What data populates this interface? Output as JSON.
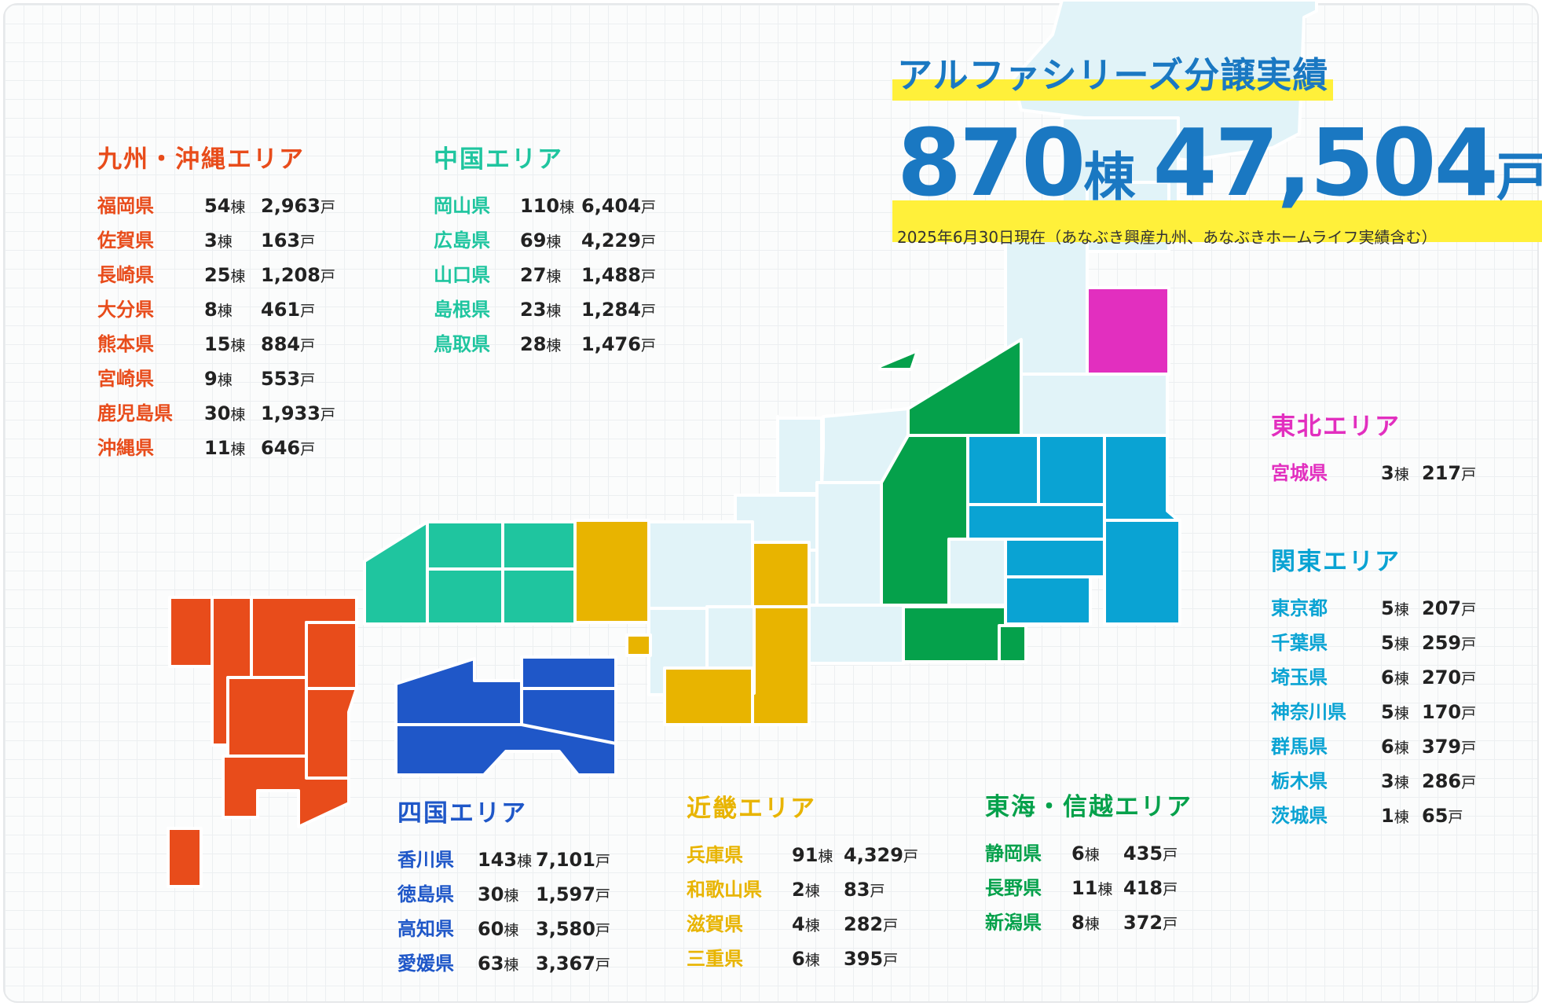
{
  "headline": {
    "title": "アルファシリーズ分譲実績",
    "total_buildings": "870",
    "buildings_unit": "棟",
    "total_units": "47,504",
    "units_unit": "戸",
    "note": "2025年6月30日現在（あなぶき興産九州、あなぶきホームライフ実績含む）"
  },
  "colors": {
    "kyushu": "#e84c1b",
    "chugoku": "#1fc59f",
    "shikoku": "#1f57c8",
    "kinki": "#e8b400",
    "tokai_shinetsu": "#05a14b",
    "tohoku": "#e22fbf",
    "kanto": "#0aa3d3",
    "headline": "#1a78c2",
    "highlight": "#fff03a",
    "map_base": "#e1f3f8"
  },
  "areas": {
    "kyushu": {
      "title": "九州・沖縄エリア",
      "prefectures": [
        {
          "name": "福岡県",
          "buildings": "54",
          "units": "2,963"
        },
        {
          "name": "佐賀県",
          "buildings": "3",
          "units": "163"
        },
        {
          "name": "長崎県",
          "buildings": "25",
          "units": "1,208"
        },
        {
          "name": "大分県",
          "buildings": "8",
          "units": "461"
        },
        {
          "name": "熊本県",
          "buildings": "15",
          "units": "884"
        },
        {
          "name": "宮崎県",
          "buildings": "9",
          "units": "553"
        },
        {
          "name": "鹿児島県",
          "buildings": "30",
          "units": "1,933"
        },
        {
          "name": "沖縄県",
          "buildings": "11",
          "units": "646"
        }
      ]
    },
    "chugoku": {
      "title": "中国エリア",
      "prefectures": [
        {
          "name": "岡山県",
          "buildings": "110",
          "units": "6,404"
        },
        {
          "name": "広島県",
          "buildings": "69",
          "units": "4,229"
        },
        {
          "name": "山口県",
          "buildings": "27",
          "units": "1,488"
        },
        {
          "name": "島根県",
          "buildings": "23",
          "units": "1,284"
        },
        {
          "name": "鳥取県",
          "buildings": "28",
          "units": "1,476"
        }
      ]
    },
    "shikoku": {
      "title": "四国エリア",
      "prefectures": [
        {
          "name": "香川県",
          "buildings": "143",
          "units": "7,101"
        },
        {
          "name": "徳島県",
          "buildings": "30",
          "units": "1,597"
        },
        {
          "name": "高知県",
          "buildings": "60",
          "units": "3,580"
        },
        {
          "name": "愛媛県",
          "buildings": "63",
          "units": "3,367"
        }
      ]
    },
    "kinki": {
      "title": "近畿エリア",
      "prefectures": [
        {
          "name": "兵庫県",
          "buildings": "91",
          "units": "4,329"
        },
        {
          "name": "和歌山県",
          "buildings": "2",
          "units": "83"
        },
        {
          "name": "滋賀県",
          "buildings": "4",
          "units": "282"
        },
        {
          "name": "三重県",
          "buildings": "6",
          "units": "395"
        }
      ]
    },
    "tokai": {
      "title": "東海・信越エリア",
      "prefectures": [
        {
          "name": "静岡県",
          "buildings": "6",
          "units": "435"
        },
        {
          "name": "長野県",
          "buildings": "11",
          "units": "418"
        },
        {
          "name": "新潟県",
          "buildings": "8",
          "units": "372"
        }
      ]
    },
    "tohoku": {
      "title": "東北エリア",
      "prefectures": [
        {
          "name": "宮城県",
          "buildings": "3",
          "units": "217"
        }
      ]
    },
    "kanto": {
      "title": "関東エリア",
      "prefectures": [
        {
          "name": "東京都",
          "buildings": "5",
          "units": "207"
        },
        {
          "name": "千葉県",
          "buildings": "5",
          "units": "259"
        },
        {
          "name": "埼玉県",
          "buildings": "6",
          "units": "270"
        },
        {
          "name": "神奈川県",
          "buildings": "5",
          "units": "170"
        },
        {
          "name": "群馬県",
          "buildings": "6",
          "units": "379"
        },
        {
          "name": "栃木県",
          "buildings": "3",
          "units": "286"
        },
        {
          "name": "茨城県",
          "buildings": "1",
          "units": "65"
        }
      ]
    }
  },
  "labels": {
    "buildings_unit": "棟",
    "units_unit": "戸"
  }
}
